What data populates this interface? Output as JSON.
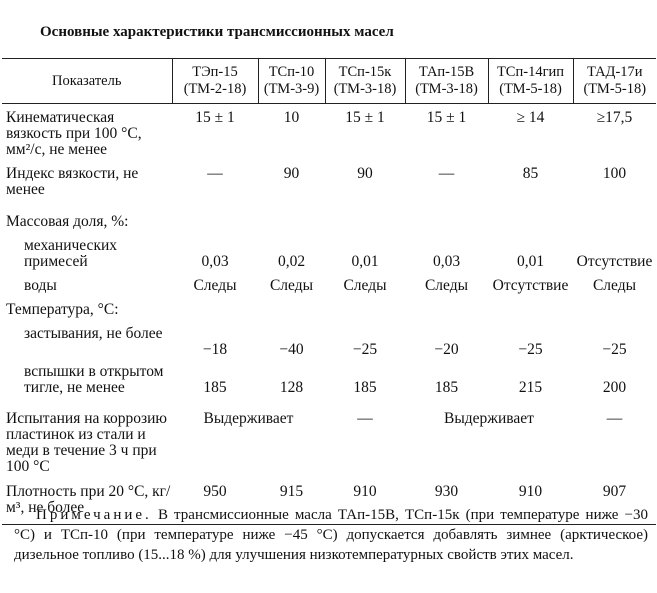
{
  "title": "Основные характеристики трансмиссионных масел",
  "table": {
    "header": [
      {
        "name": "Показатель"
      },
      {
        "name": "ТЭп-15",
        "spec": "(ТМ-2-18)"
      },
      {
        "name": "ТСп-10",
        "spec": "(ТМ-3-9)"
      },
      {
        "name": "ТСп-15к",
        "spec": "(ТМ-3-18)"
      },
      {
        "name": "ТАп-15В",
        "spec": "(ТМ-3-18)"
      },
      {
        "name": "ТСп-14гип",
        "spec": "(ТМ-5-18)"
      },
      {
        "name": "ТАД-17и",
        "spec": "(ТМ-5-18)"
      }
    ],
    "rows": [
      {
        "label": "Кинематическая вязкость при 100 °С, мм²/с, не менее",
        "cells": [
          {
            "text": "15 ± 1"
          },
          {
            "text": "10"
          },
          {
            "text": "15 ± 1"
          },
          {
            "text": "15 ± 1"
          },
          {
            "text": "≥ 14"
          },
          {
            "text": "≥17,5"
          }
        ]
      },
      {
        "label": "Индекс вязкости, не менее",
        "cells": [
          {
            "text": "—"
          },
          {
            "text": "90"
          },
          {
            "text": "90"
          },
          {
            "text": "—"
          },
          {
            "text": "85"
          },
          {
            "text": "100"
          }
        ]
      },
      {
        "label": "Массовая доля, %:",
        "cells": []
      },
      {
        "label": "механических примесей",
        "indent": true,
        "cells": [
          {
            "text": "0,03"
          },
          {
            "text": "0,02"
          },
          {
            "text": "0,01"
          },
          {
            "text": "0,03"
          },
          {
            "text": "0,01"
          },
          {
            "text": "Отсутствие"
          }
        ]
      },
      {
        "label": "воды",
        "indent": true,
        "cells": [
          {
            "text": "Следы"
          },
          {
            "text": "Следы"
          },
          {
            "text": "Следы"
          },
          {
            "text": "Следы"
          },
          {
            "text": "Отсутствие"
          },
          {
            "text": "Следы"
          }
        ]
      },
      {
        "label": "Температура, °С:",
        "cells": []
      },
      {
        "label": "застывания, не более",
        "indent": true,
        "cells": [
          {
            "text": "−18"
          },
          {
            "text": "−40"
          },
          {
            "text": "−25"
          },
          {
            "text": "−20"
          },
          {
            "text": "−25"
          },
          {
            "text": "−25"
          }
        ]
      },
      {
        "label": "вспышки в открытом тигле, не менее",
        "indent": true,
        "cells": [
          {
            "text": "185"
          },
          {
            "text": "128"
          },
          {
            "text": "185"
          },
          {
            "text": "185"
          },
          {
            "text": "215"
          },
          {
            "text": "200"
          }
        ]
      },
      {
        "label": "Испытания на коррозию пластинок из стали и меди в течение 3 ч при 100 °С",
        "cells": [
          {
            "text": "Выдерживает",
            "span": 2
          },
          {
            "text": "—"
          },
          {
            "text": "Выдерживает",
            "span": 2
          },
          {
            "text": "—"
          }
        ]
      },
      {
        "label": "Плотность при 20 °С, кг/м³, не более",
        "cells": [
          {
            "text": "950"
          },
          {
            "text": "915"
          },
          {
            "text": "910"
          },
          {
            "text": "930"
          },
          {
            "text": "910"
          },
          {
            "text": "907"
          }
        ]
      }
    ]
  },
  "note": {
    "label": "Примечание.",
    "text": "В трансмиссионные масла ТАп-15В, ТСп-15к (при температуре ниже −30 °С) и ТСп-10 (при температуре ниже −45 °С) допускается добавлять зимнее (арктическое) дизельное топливо (15...18 %) для улучшения низкотемпературных свойств этих масел."
  }
}
